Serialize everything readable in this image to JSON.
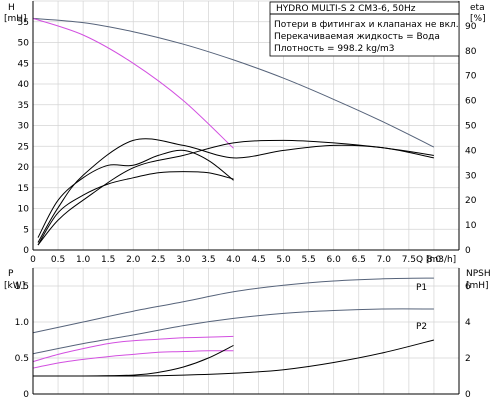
{
  "colors": {
    "series": "#56637a",
    "pink": "#d24fe0",
    "black": "#000000",
    "grid": "#d4d4d4"
  },
  "chart_data": [
    {
      "type": "line",
      "title": "HYDRO MULTI-S 2 CM3-6, 50Hz",
      "info_lines": [
        "Потери в фитингах и клапанах не вкл.",
        "Перекачиваемая жидкость = Вода",
        "Плотность = 998.2 kg/m3"
      ],
      "xlabel": "Q [m3/h]",
      "ylabel_left": [
        "H",
        "[mH]"
      ],
      "ylabel_right": [
        "eta",
        "[%]"
      ],
      "xlim": [
        0,
        8.5
      ],
      "ylim_left": [
        0,
        60
      ],
      "ylim_right": [
        0,
        100
      ],
      "xticks": [
        "0",
        "0.5",
        "1.0",
        "1.5",
        "2.0",
        "2.5",
        "3.0",
        "3.5",
        "4.0",
        "4.5",
        "5.0",
        "5.5",
        "6.0",
        "6.5",
        "7.0",
        "7.5",
        "8.0"
      ],
      "yticks_left": [
        "0",
        "5",
        "10",
        "15",
        "20",
        "25",
        "30",
        "35",
        "40",
        "45",
        "50",
        "55"
      ],
      "yticks_right": [
        "0",
        "10",
        "20",
        "30",
        "40",
        "50",
        "60",
        "70",
        "80",
        "90"
      ],
      "grid": true,
      "series": [
        {
          "axis": "left",
          "color": "#56637a",
          "x": [
            0,
            1,
            2,
            3,
            4,
            5,
            6,
            7,
            8
          ],
          "y": [
            55.8,
            54.8,
            52.6,
            49.6,
            45.8,
            41.4,
            36.3,
            30.8,
            24.8
          ]
        },
        {
          "axis": "left",
          "color": "#d24fe0",
          "x": [
            0,
            1,
            2,
            3,
            4
          ],
          "y": [
            55.8,
            51.8,
            45.0,
            36.0,
            24.5
          ]
        },
        {
          "axis": "right",
          "color": "#000000",
          "x": [
            0.1,
            0.5,
            1,
            1.5,
            2,
            2.5,
            3,
            3.5,
            4
          ],
          "y": [
            5,
            20,
            29,
            34,
            34,
            38,
            40,
            36,
            28
          ]
        },
        {
          "axis": "right",
          "color": "#000000",
          "x": [
            0.1,
            0.5,
            1,
            1.5,
            2,
            2.5,
            3,
            3.5,
            4
          ],
          "y": [
            2,
            15,
            22,
            26.5,
            29,
            31,
            31.5,
            31,
            28.5
          ]
        },
        {
          "axis": "right",
          "color": "#000000",
          "x": [
            0.1,
            0.5,
            1,
            2,
            3,
            4,
            5,
            6,
            7,
            8
          ],
          "y": [
            3,
            17,
            30,
            44,
            42,
            37,
            40,
            42,
            41,
            37
          ]
        },
        {
          "axis": "right",
          "color": "#000000",
          "x": [
            0.1,
            0.5,
            1,
            2,
            3,
            4,
            5,
            6,
            7,
            8
          ],
          "y": [
            2,
            12,
            20,
            33,
            38,
            43,
            44,
            43,
            41,
            38
          ]
        }
      ]
    },
    {
      "type": "line",
      "xlim": [
        0,
        8.5
      ],
      "ylabel_left": [
        "P",
        "[kW]"
      ],
      "ylabel_right": [
        "NPSH",
        "[mH]"
      ],
      "ylim_left": [
        0,
        1.75
      ],
      "ylim_right": [
        0,
        7
      ],
      "yticks_left": [
        "0",
        "0.5",
        "1.0",
        "1.5"
      ],
      "yticks_right": [
        "0",
        "2",
        "4",
        "6"
      ],
      "grid": true,
      "series": [
        {
          "name": "P1",
          "axis": "left",
          "color": "#56637a",
          "x": [
            0,
            1,
            2,
            3,
            4,
            5,
            6,
            7,
            8
          ],
          "y": [
            0.85,
            1.0,
            1.15,
            1.28,
            1.42,
            1.51,
            1.57,
            1.6,
            1.61
          ]
        },
        {
          "name": "P2",
          "axis": "left",
          "color": "#56637a",
          "x": [
            0,
            1,
            2,
            3,
            4,
            5,
            6,
            7,
            8
          ],
          "y": [
            0.56,
            0.7,
            0.82,
            0.95,
            1.05,
            1.12,
            1.16,
            1.18,
            1.18
          ]
        },
        {
          "axis": "left",
          "color": "#d24fe0",
          "x": [
            0,
            0.5,
            1,
            1.5,
            2,
            2.5,
            3,
            3.5,
            4
          ],
          "y": [
            0.45,
            0.55,
            0.63,
            0.7,
            0.74,
            0.76,
            0.78,
            0.79,
            0.8
          ]
        },
        {
          "axis": "left",
          "color": "#d24fe0",
          "x": [
            0,
            0.5,
            1,
            1.5,
            2,
            2.5,
            3,
            3.5,
            4
          ],
          "y": [
            0.36,
            0.43,
            0.48,
            0.52,
            0.55,
            0.58,
            0.59,
            0.6,
            0.6
          ]
        },
        {
          "axis": "right",
          "color": "#000000",
          "x": [
            0,
            1,
            2,
            3,
            4,
            5,
            6,
            7,
            8
          ],
          "y": [
            1.0,
            1.0,
            1.0,
            1.05,
            1.15,
            1.35,
            1.75,
            2.3,
            3.0
          ]
        },
        {
          "axis": "right",
          "color": "#000000",
          "x": [
            0,
            1,
            2,
            2.5,
            3,
            3.5,
            4
          ],
          "y": [
            1.0,
            1.0,
            1.05,
            1.2,
            1.5,
            2.0,
            2.7
          ]
        }
      ]
    }
  ]
}
